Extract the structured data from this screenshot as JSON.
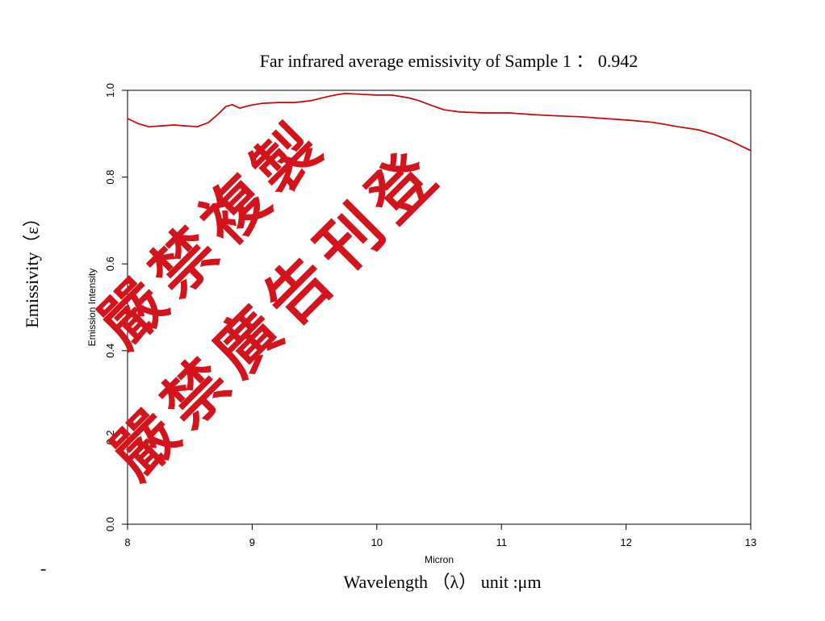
{
  "chart_data": {
    "type": "line",
    "title": "Far infrared average emissivity of Sample 1 ： 0.942",
    "xlabel": "Micron",
    "ylabel": "Emission Intensity",
    "outer_xlabel": "Wavelength （λ） unit :μm",
    "outer_ylabel": "Emissivity（ε）",
    "xlim": [
      8,
      13
    ],
    "ylim": [
      0,
      1.0
    ],
    "x_ticks": [
      "8",
      "9",
      "10",
      "11",
      "12",
      "13"
    ],
    "y_ticks": [
      "0.0",
      "0.2",
      "0.4",
      "0.6",
      "0.8",
      "1.0"
    ],
    "grid": false,
    "legend": "none",
    "series": [
      {
        "color": "#cc0000",
        "x": [
          8.0,
          8.08,
          8.17,
          8.27,
          8.37,
          8.47,
          8.56,
          8.65,
          8.73,
          8.79,
          8.84,
          8.9,
          8.98,
          9.08,
          9.21,
          9.34,
          9.47,
          9.57,
          9.66,
          9.75,
          9.86,
          9.99,
          10.12,
          10.25,
          10.34,
          10.44,
          10.54,
          10.67,
          10.86,
          11.06,
          11.25,
          11.45,
          11.64,
          11.83,
          12.03,
          12.22,
          12.42,
          12.58,
          12.71,
          12.84,
          13.0
        ],
        "y": [
          0.935,
          0.924,
          0.916,
          0.918,
          0.92,
          0.918,
          0.916,
          0.926,
          0.946,
          0.963,
          0.967,
          0.959,
          0.965,
          0.97,
          0.972,
          0.972,
          0.976,
          0.983,
          0.989,
          0.993,
          0.991,
          0.989,
          0.989,
          0.983,
          0.976,
          0.965,
          0.955,
          0.95,
          0.948,
          0.948,
          0.944,
          0.941,
          0.939,
          0.935,
          0.931,
          0.926,
          0.916,
          0.909,
          0.898,
          0.883,
          0.861
        ]
      }
    ]
  },
  "footnote_mark": "-",
  "watermark": {
    "lines": [
      "嚴禁複製",
      "嚴禁廣告刊登"
    ],
    "color": "#d4141c"
  }
}
